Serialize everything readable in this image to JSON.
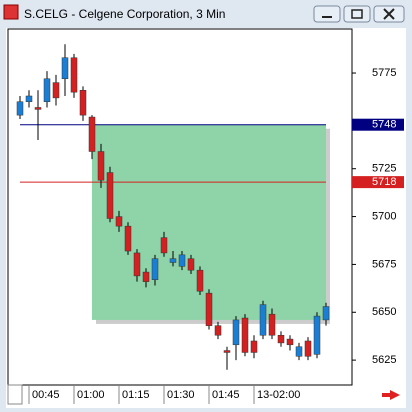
{
  "chart_data": {
    "type": "candlestick",
    "title": "S.CELG - Celgene Corporation, 3 Min",
    "categories": [
      null,
      "00:45",
      null,
      null,
      null,
      null,
      "01:00",
      null,
      null,
      null,
      null,
      "01:15",
      null,
      null,
      null,
      null,
      "01:30",
      null,
      null,
      null,
      null,
      "01:45",
      null,
      null,
      null,
      null,
      "13-02:00",
      null,
      null,
      null,
      null,
      null,
      null,
      null,
      null
    ],
    "open": [
      5753,
      5760,
      5757,
      5760,
      5770,
      5772,
      5783,
      5766,
      5752,
      5734,
      5723,
      5700,
      5695,
      5681,
      5671,
      5667,
      5689,
      5676,
      5674,
      5678,
      5672,
      5660,
      5643,
      5630,
      5633,
      5647,
      5635,
      5638,
      5649,
      5638,
      5636,
      5627,
      5635,
      5628,
      5646
    ],
    "high": [
      5763,
      5766,
      5766,
      5776,
      5774,
      5790,
      5785,
      5768,
      5753,
      5738,
      5726,
      5703,
      5697,
      5683,
      5673,
      5680,
      5692,
      5682,
      5682,
      5680,
      5674,
      5662,
      5645,
      5632,
      5648,
      5649,
      5638,
      5656,
      5652,
      5640,
      5638,
      5634,
      5637,
      5650,
      5655
    ],
    "low": [
      5751,
      5757,
      5740,
      5757,
      5758,
      5763,
      5762,
      5750,
      5730,
      5715,
      5697,
      5692,
      5680,
      5666,
      5663,
      5664,
      5679,
      5674,
      5672,
      5670,
      5659,
      5641,
      5636,
      5620,
      5625,
      5627,
      5626,
      5636,
      5636,
      5632,
      5630,
      5625,
      5625,
      5626,
      5643
    ],
    "close": [
      5760,
      5763,
      5756,
      5772,
      5762,
      5783,
      5765,
      5753,
      5734,
      5719,
      5699,
      5695,
      5682,
      5669,
      5666,
      5678,
      5681,
      5678,
      5680,
      5672,
      5661,
      5643,
      5638,
      5629,
      5646,
      5629,
      5629,
      5654,
      5638,
      5634,
      5633,
      5632,
      5627,
      5648,
      5653
    ],
    "up_color": "#1a7fd4",
    "down_color": "#d42020",
    "ylim": [
      5612,
      5798
    ],
    "yticks": [
      5625,
      5650,
      5675,
      5700,
      5725,
      5775
    ],
    "hlines": [
      {
        "value": 5748,
        "color": "#000080"
      },
      {
        "value": 5718,
        "color": "#d42020"
      }
    ],
    "zone": {
      "start": 8,
      "end": 34,
      "top": 5748,
      "bottom": 5646,
      "color": "#8fd4a8"
    }
  }
}
